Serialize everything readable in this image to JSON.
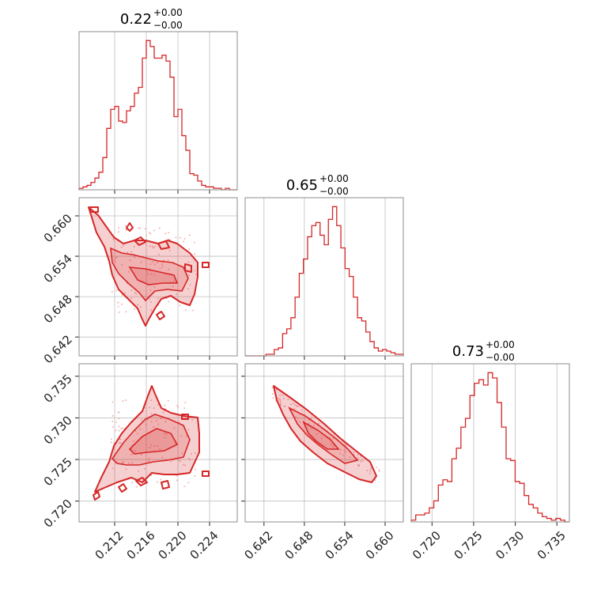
{
  "chart_data": {
    "type": "corner",
    "color": "#d62728",
    "parameters": [
      {
        "title": "0.22",
        "upper": "+0.00",
        "lower": "−0.00",
        "range": [
          0.2075,
          0.2275
        ],
        "ticks": [
          0.212,
          0.216,
          0.22,
          0.224
        ],
        "tick_labels": [
          "0.212",
          "0.216",
          "0.220",
          "0.224"
        ],
        "hist_counts": [
          1,
          2,
          3,
          5,
          8,
          12,
          22,
          42,
          55,
          57,
          47,
          46,
          54,
          57,
          66,
          70,
          90,
          102,
          98,
          90,
          90,
          92,
          88,
          77,
          50,
          55,
          37,
          27,
          11,
          10,
          6,
          3,
          2,
          2,
          1,
          1,
          0,
          1,
          0,
          0
        ]
      },
      {
        "title": "0.65",
        "upper": "+0.00",
        "lower": "−0.00",
        "range": [
          0.6392,
          0.6627
        ],
        "ticks": [
          0.642,
          0.648,
          0.654,
          0.66
        ],
        "tick_labels": [
          "0.642",
          "0.648",
          "0.654",
          "0.660"
        ],
        "hist_counts": [
          0,
          0,
          0,
          0,
          0,
          1,
          1,
          4,
          5,
          14,
          17,
          24,
          37,
          52,
          61,
          75,
          82,
          84,
          76,
          70,
          86,
          94,
          82,
          68,
          55,
          50,
          37,
          24,
          22,
          15,
          9,
          5,
          3,
          4,
          3,
          2,
          1,
          1
        ]
      },
      {
        "title": "0.73",
        "upper": "+0.00",
        "lower": "−0.00",
        "range": [
          0.7175,
          0.7365
        ],
        "ticks": [
          0.72,
          0.725,
          0.73,
          0.735
        ],
        "tick_labels": [
          "0.720",
          "0.725",
          "0.730",
          "0.735"
        ],
        "hist_counts": [
          1,
          4,
          4,
          5,
          8,
          12,
          21,
          24,
          23,
          36,
          42,
          54,
          59,
          72,
          79,
          81,
          78,
          85,
          82,
          68,
          54,
          36,
          35,
          23,
          22,
          15,
          10,
          8,
          5,
          3,
          2,
          1,
          2,
          1,
          0
        ]
      }
    ]
  }
}
